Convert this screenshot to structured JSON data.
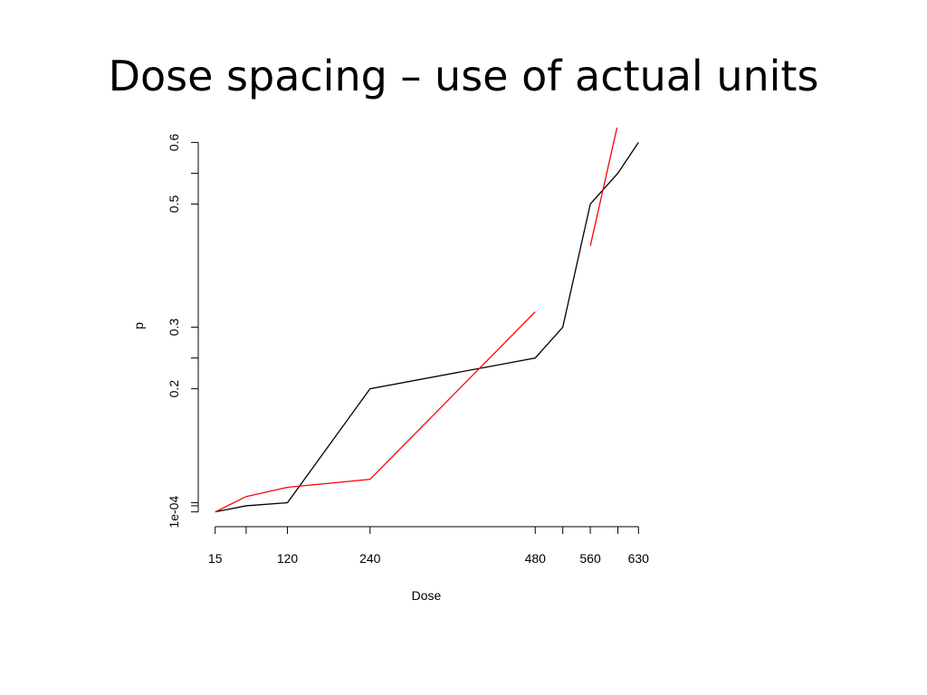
{
  "chart_data": {
    "type": "line",
    "title": "Dose spacing – use of actual units",
    "x_label": "Dose",
    "y_label": "p",
    "x": [
      15,
      60,
      120,
      240,
      480,
      520,
      560,
      600,
      630
    ],
    "series": [
      {
        "color": "#000000",
        "values": [
          0.0001,
          0.01,
          0.015,
          0.2,
          0.25,
          0.3,
          0.5,
          0.55,
          0.6
        ]
      },
      {
        "color": "#ff0000",
        "values": [
          0.0001,
          0.025,
          0.04,
          0.053,
          0.325,
          null,
          0.432,
          0.63,
          null
        ]
      }
    ],
    "xlim": [
      -9.6,
      654.6
    ],
    "ylim": [
      -0.0239,
      0.6241
    ],
    "xticks": [
      15,
      {
        "value": 60,
        "label": null
      },
      120,
      240,
      480,
      {
        "value": 520,
        "label": null
      },
      560,
      {
        "value": 600,
        "label": null
      },
      630
    ],
    "yticks": [
      {
        "value": 0.0001,
        "label": "1e-04"
      },
      {
        "value": 0.01,
        "label": null
      },
      {
        "value": 0.015,
        "label": null
      },
      0.2,
      {
        "value": 0.25,
        "label": null
      },
      0.3,
      0.5,
      {
        "value": 0.55,
        "label": null
      },
      0.6
    ]
  }
}
